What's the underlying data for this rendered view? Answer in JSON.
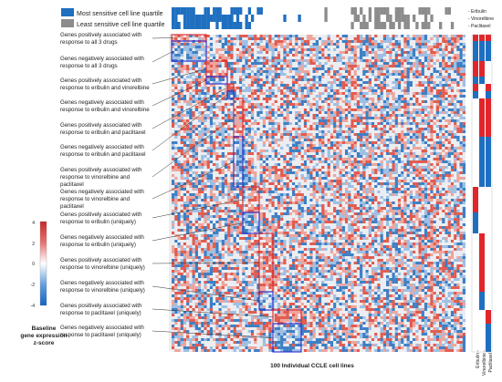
{
  "legend": {
    "most_sensitive": "Most sensitive cell line quartile",
    "least_sensitive": "Least sensitive cell line quartile",
    "colors": {
      "most": "#1f6fc0",
      "least": "#8c8c8c"
    }
  },
  "drug_legend": [
    "- Eribulin",
    "- Vinorelbine",
    "- Paclitaxel"
  ],
  "drug_labels_bottom": [
    "Eribulin -",
    "Vinorelbine -",
    "Paclitaxel -"
  ],
  "gene_groups": [
    {
      "l1": "Genes positively associated with",
      "l2": "response to all 3 drugs",
      "l3": "",
      "box_color": "#d9232a"
    },
    {
      "l1": "Genes negatively associated with",
      "l2": "response to all 3 drugs",
      "l3": "",
      "box_color": "#2a2acf"
    },
    {
      "l1": "Genes positively associated with",
      "l2": "response to eribulin and vinorelbine",
      "l3": "",
      "box_color": "#d9232a"
    },
    {
      "l1": "Genes negatively associated with",
      "l2": "response to eribulin and vinorelbine",
      "l3": "",
      "box_color": "#2a2acf"
    },
    {
      "l1": "Genes positively associated with",
      "l2": "response to eribulin and paclitaxel",
      "l3": "",
      "box_color": "#d9232a"
    },
    {
      "l1": "Genes negatively associated with",
      "l2": "response to eribulin and paclitaxel",
      "l3": "",
      "box_color": "#2a2acf"
    },
    {
      "l1": "Genes positively associated with",
      "l2": "response to vinorelbine and",
      "l3": "paclitaxel",
      "box_color": "#d9232a"
    },
    {
      "l1": "Genes negatively associated with",
      "l2": "response to vinorelbine and",
      "l3": "paclitaxel",
      "box_color": "#2a2acf"
    },
    {
      "l1": "Genes positively associated with",
      "l2": "response to eribulin (uniquely)",
      "l3": "",
      "box_color": "#d9232a"
    },
    {
      "l1": "Genes negatively associated with",
      "l2": "response to eribulin (uniquely)",
      "l3": "",
      "box_color": "#2a2acf"
    },
    {
      "l1": "Genes positively associated with",
      "l2": "response to vinorelbine (uniquely)",
      "l3": "",
      "box_color": "#d9232a"
    },
    {
      "l1": "Genes negatively associated with",
      "l2": "response to vinorelbine (uniquely)",
      "l3": "",
      "box_color": "#2a2acf"
    },
    {
      "l1": "Genes positively associated with",
      "l2": "response to paclitaxel (uniquely)",
      "l3": "",
      "box_color": "#d9232a"
    },
    {
      "l1": "Genes negatively associated with",
      "l2": "response to paclitaxel (uniquely)",
      "l3": "",
      "box_color": "#2a2acf"
    }
  ],
  "colorbar": {
    "ticks": [
      "4",
      "2",
      "0",
      "-2",
      "-4"
    ],
    "title_lines": [
      "Baseline",
      "gene expression",
      "z-score"
    ],
    "colors": {
      "high": "#c62828",
      "mid": "#ffffff",
      "low": "#1565c0"
    }
  },
  "heatmap": {
    "xlabel": "100 Individual CCLE cell lines",
    "n_cell_lines": 100,
    "colors": {
      "pos": "#e57368",
      "neg": "#6a9bd1",
      "base": "#d9dde6"
    }
  }
}
